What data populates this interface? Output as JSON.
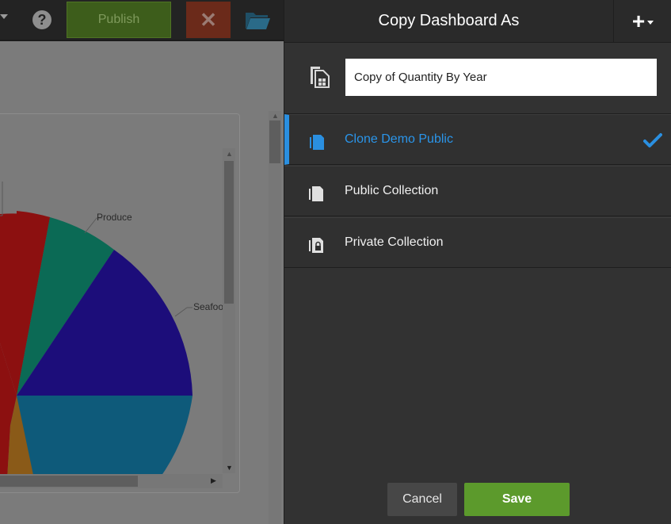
{
  "toolbar": {
    "help_icon": "question-circle-icon",
    "help_glyph": "?",
    "publish_label": "Publish",
    "close_icon": "close-x-icon",
    "close_glyph": "✕",
    "folder_icon": "folder-open-icon"
  },
  "chart": {
    "labels": {
      "produce": "Produce",
      "seafood": "Seafoo"
    },
    "colors": {
      "red": "#8c1010",
      "teal": "#0b6a55",
      "navy": "#1c0d7a",
      "blue": "#0e5a7a",
      "orange": "#8a5a18",
      "purple": "#4a1a6a"
    }
  },
  "dialog": {
    "title": "Copy Dashboard As",
    "add_button": {
      "glyph": "+",
      "icon": "plus-dropdown-icon"
    },
    "name_field": {
      "value": "Copy of Quantity By Year",
      "icon": "copy-dashboard-icon"
    },
    "collections": [
      {
        "label": "Clone Demo Public",
        "selected": true,
        "icon": "document-icon"
      },
      {
        "label": "Public Collection",
        "selected": false,
        "icon": "document-icon"
      },
      {
        "label": "Private Collection",
        "selected": false,
        "icon": "locked-document-icon"
      }
    ],
    "cancel_label": "Cancel",
    "save_label": "Save",
    "accent_color": "#2a8fe0",
    "save_color": "#5c9a2c"
  }
}
